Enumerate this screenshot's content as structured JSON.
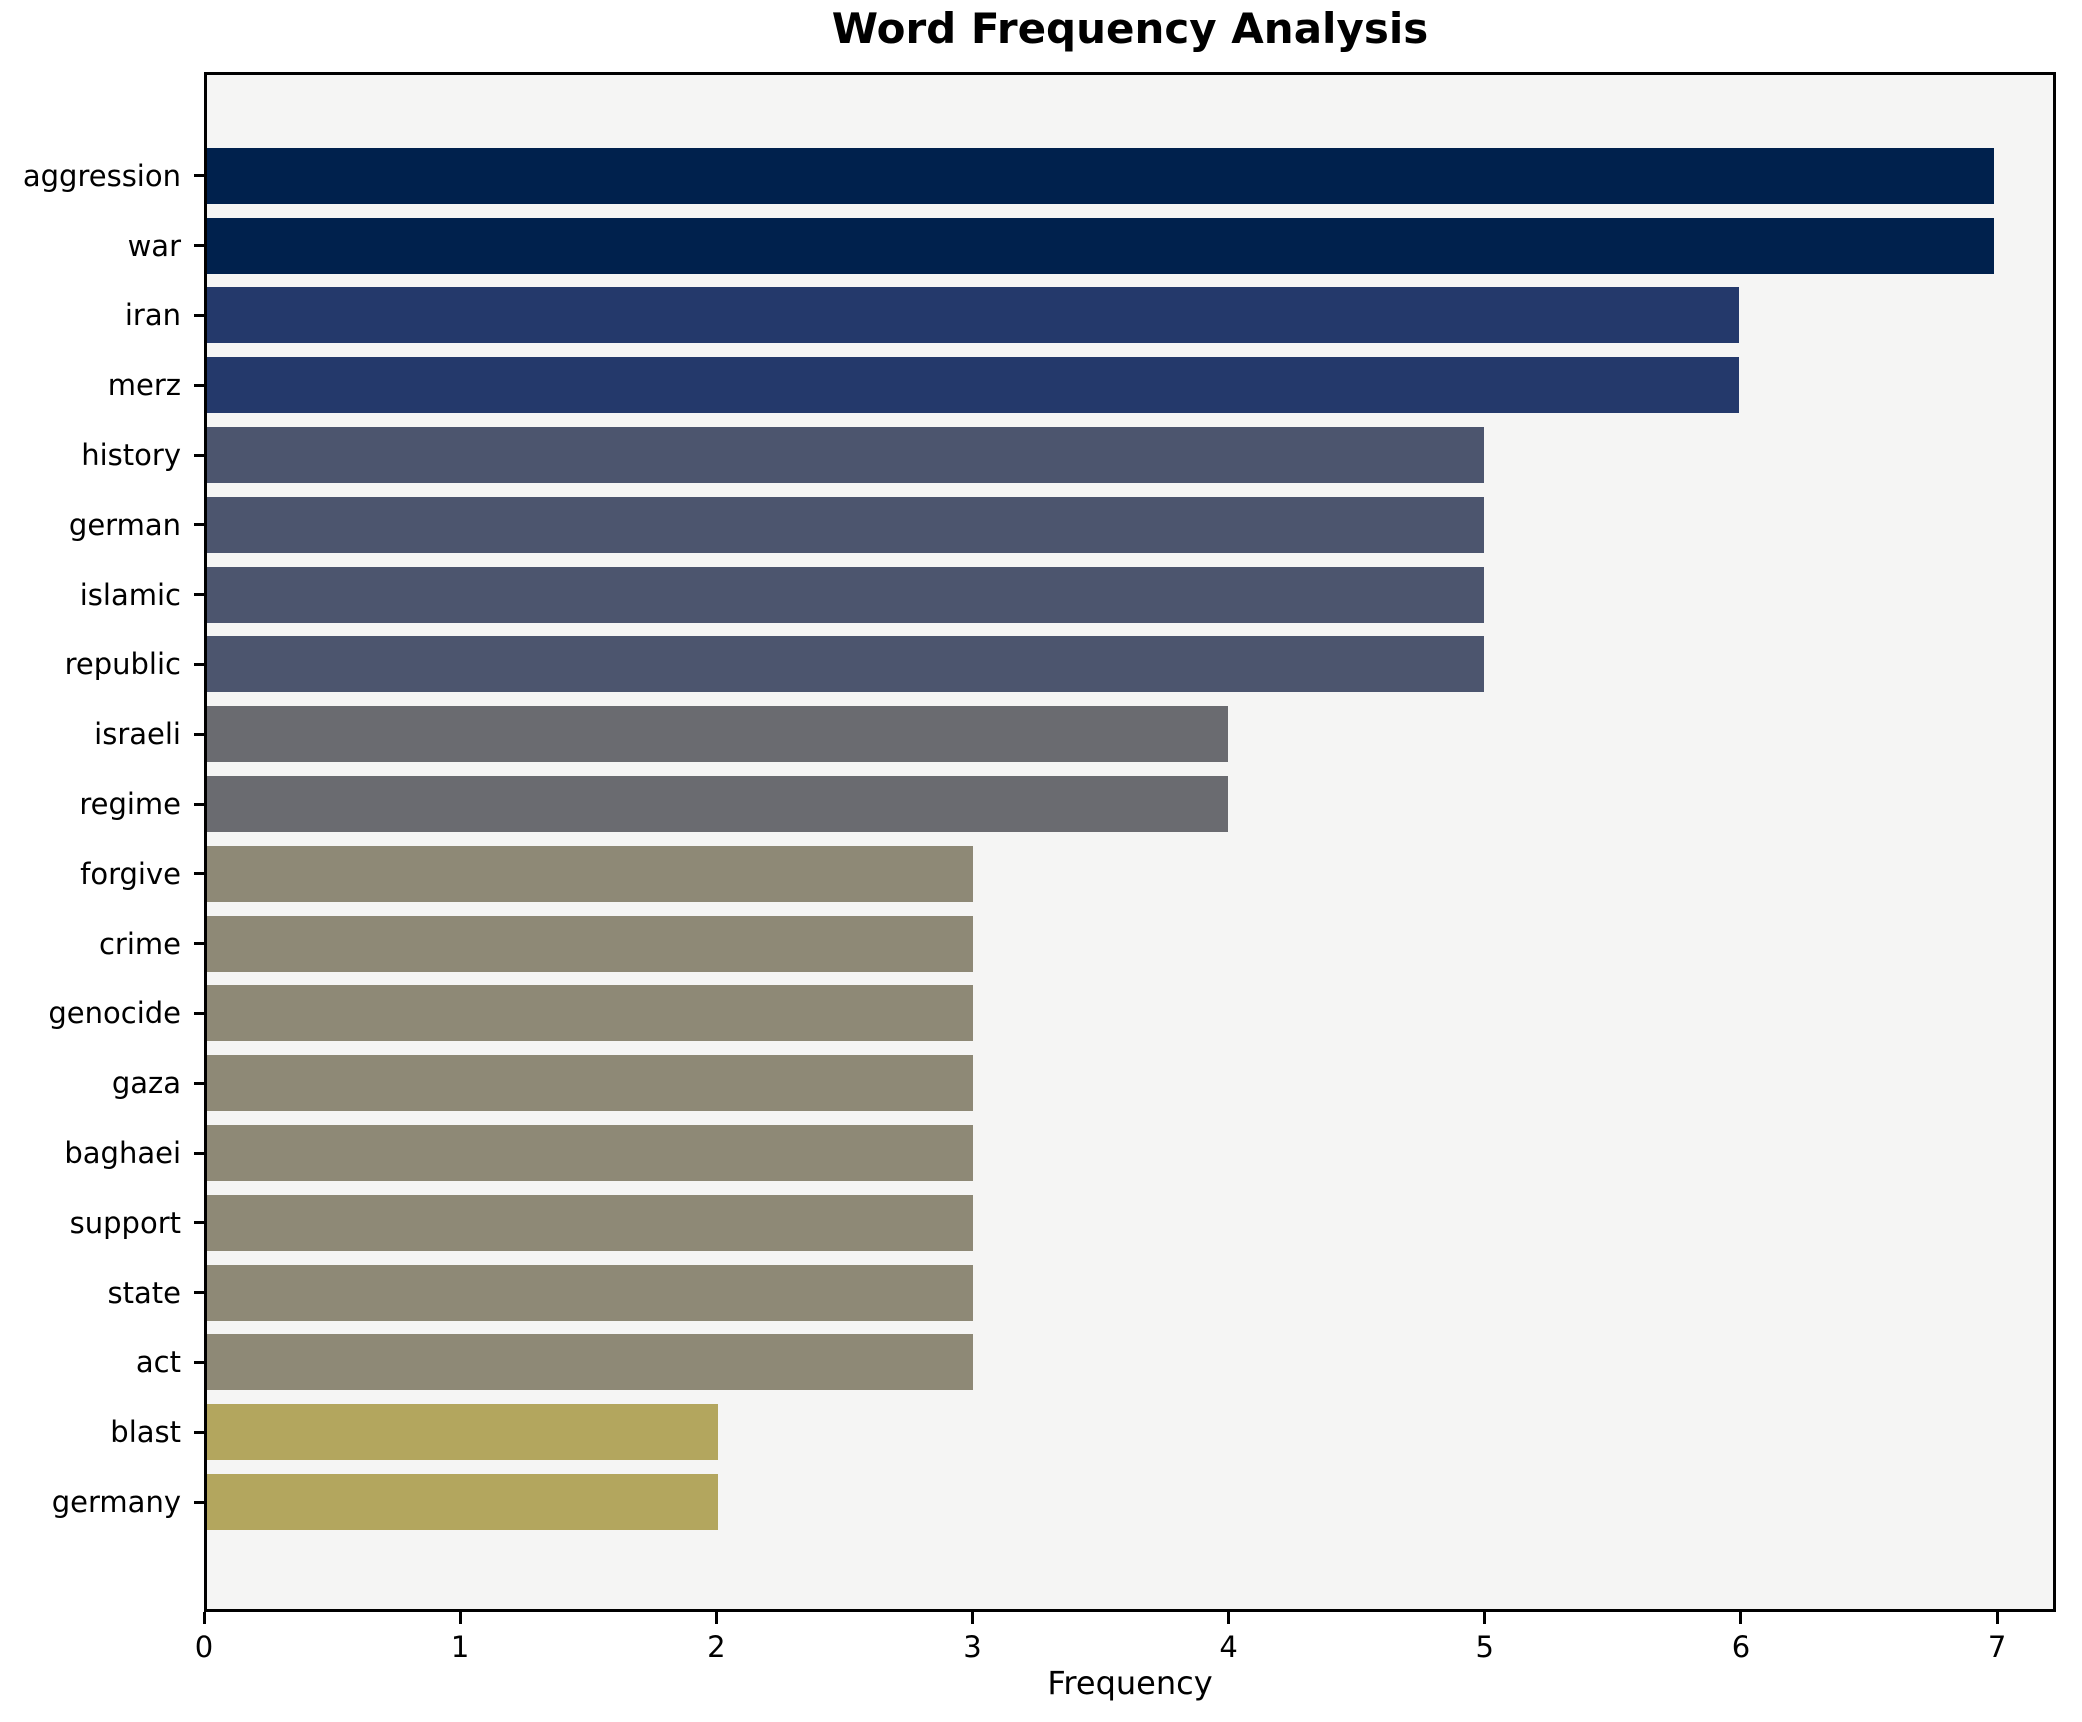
{
  "title": "Word Frequency Analysis",
  "chart_data": {
    "type": "bar",
    "orientation": "horizontal",
    "title": "Word Frequency Analysis",
    "xlabel": "Frequency",
    "ylabel": "",
    "categories": [
      "aggression",
      "war",
      "iran",
      "merz",
      "history",
      "german",
      "islamic",
      "republic",
      "israeli",
      "regime",
      "forgive",
      "crime",
      "genocide",
      "gaza",
      "baghaei",
      "support",
      "state",
      "act",
      "blast",
      "germany"
    ],
    "values": [
      7,
      7,
      6,
      6,
      5,
      5,
      5,
      5,
      4,
      4,
      3,
      3,
      3,
      3,
      3,
      3,
      3,
      3,
      2,
      2
    ],
    "x_ticks": [
      0,
      1,
      2,
      3,
      4,
      5,
      6,
      7
    ],
    "xlim": [
      0,
      7.23
    ],
    "grid": false,
    "legend": null,
    "colors": {
      "palette_name": "cividis",
      "value_color_map": {
        "7": "#00214d",
        "6": "#24396b",
        "5": "#4c556e",
        "4": "#6a6b70",
        "3": "#8e8976",
        "2": "#b3a65e"
      },
      "plot_background": "#f5f5f4",
      "figure_background": "#ffffff",
      "axis_color": "#000000",
      "text_color": "#000000"
    }
  }
}
